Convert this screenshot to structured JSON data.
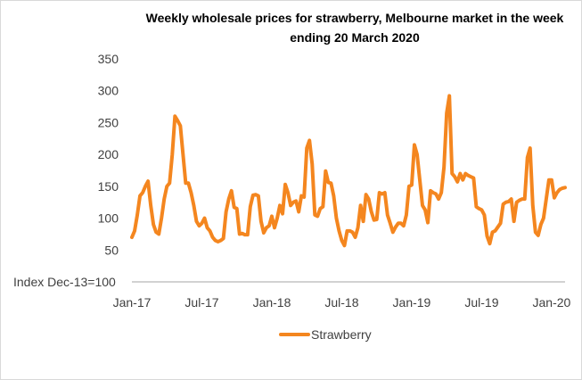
{
  "chart_data": {
    "type": "line",
    "title_lines": [
      "Weekly wholesale prices for strawberry, Melbourne market in the week",
      "ending 20 March 2020"
    ],
    "ylabel": "Index Dec-13=100",
    "xlabel": "",
    "ylim": [
      0,
      350
    ],
    "yticks": [
      "350",
      "300",
      "250",
      "200",
      "150",
      "100",
      "50"
    ],
    "x_ticks": [
      {
        "label": "Jan-17",
        "x": 0
      },
      {
        "label": "Jul-17",
        "x": 26
      },
      {
        "label": "Jan-18",
        "x": 52
      },
      {
        "label": "Jul-18",
        "x": 78
      },
      {
        "label": "Jan-19",
        "x": 104
      },
      {
        "label": "Jul-19",
        "x": 130
      },
      {
        "label": "Jan-20",
        "x": 156
      }
    ],
    "grid": false,
    "legend_position": "bottom",
    "series": [
      {
        "name": "Strawberry",
        "color": "#F4861F",
        "values": [
          70,
          80,
          105,
          135,
          140,
          150,
          158,
          120,
          90,
          78,
          75,
          100,
          130,
          150,
          155,
          200,
          260,
          253,
          245,
          200,
          155,
          155,
          140,
          120,
          95,
          88,
          92,
          100,
          85,
          80,
          70,
          65,
          63,
          65,
          68,
          110,
          130,
          143,
          117,
          115,
          75,
          76,
          74,
          74,
          118,
          136,
          137,
          135,
          95,
          77,
          85,
          88,
          103,
          85,
          100,
          120,
          107,
          153,
          140,
          120,
          125,
          127,
          110,
          135,
          133,
          210,
          222,
          185,
          105,
          103,
          115,
          118,
          174,
          156,
          155,
          135,
          100,
          80,
          65,
          57,
          80,
          80,
          78,
          70,
          85,
          120,
          95,
          137,
          130,
          110,
          97,
          98,
          140,
          138,
          140,
          105,
          92,
          78,
          86,
          92,
          92,
          88,
          105,
          150,
          152,
          215,
          200,
          160,
          120,
          113,
          93,
          143,
          140,
          138,
          130,
          140,
          180,
          265,
          292,
          170,
          165,
          157,
          170,
          160,
          170,
          167,
          165,
          163,
          118,
          115,
          113,
          105,
          72,
          60,
          78,
          80,
          86,
          92,
          122,
          125,
          126,
          130,
          95,
          125,
          128,
          130,
          130,
          195,
          210,
          120,
          78,
          73,
          90,
          100,
          130,
          160,
          160,
          132,
          140,
          145,
          147,
          148
        ]
      }
    ]
  }
}
